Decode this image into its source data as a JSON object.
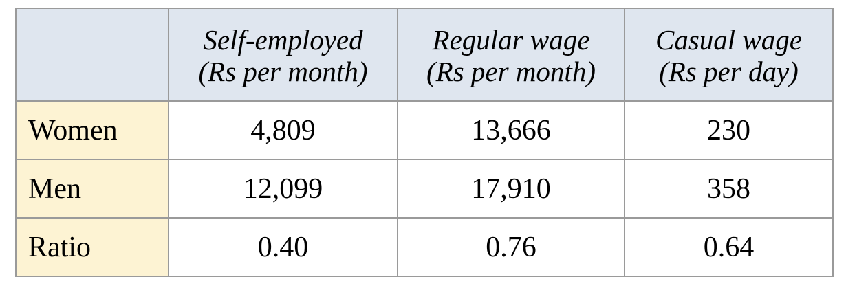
{
  "table": {
    "corner": "",
    "columns": [
      {
        "line1": "Self-employed",
        "line2": "(Rs per month)"
      },
      {
        "line1": "Regular wage",
        "line2": "(Rs per month)"
      },
      {
        "line1": "Casual wage",
        "line2": "(Rs per day)"
      }
    ],
    "rows": [
      {
        "label": "Women",
        "values": [
          "4,809",
          "13,666",
          "230"
        ]
      },
      {
        "label": "Men",
        "values": [
          "12,099",
          "17,910",
          "358"
        ]
      },
      {
        "label": "Ratio",
        "values": [
          "0.40",
          "0.76",
          "0.64"
        ]
      }
    ]
  },
  "colors": {
    "header_background": "#dfe6ef",
    "row_label_background": "#fdf3d3",
    "border": "#9a9a9a"
  }
}
